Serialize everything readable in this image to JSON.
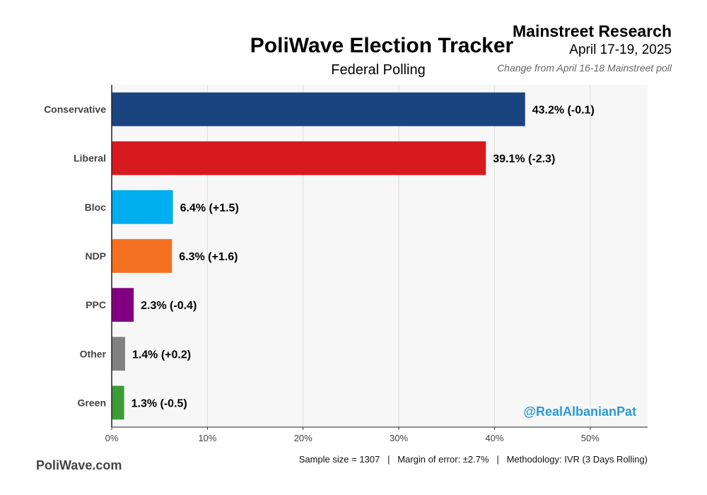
{
  "header": {
    "title": "PoliWave Election Tracker",
    "subtitle": "Federal Polling",
    "pollster": "Mainstreet Research",
    "dates": "April 17-19, 2025",
    "change_note": "Change from April 16-18 Mainstreet poll"
  },
  "footer": {
    "site": "PoliWave.com",
    "note": "Sample size = 1307   |   Margin of error: ±2.7%   |   Methodology: IVR (3 Days Rolling)"
  },
  "watermark": "@RealAlbanianPat",
  "colors": {
    "panel_background": "#f7f7f7",
    "grid": "#dddddd",
    "watermark": "#2b9ad6"
  },
  "chart_data": {
    "type": "bar",
    "orientation": "horizontal",
    "categories": [
      "Conservative",
      "Liberal",
      "Bloc",
      "NDP",
      "PPC",
      "Other",
      "Green"
    ],
    "values": [
      43.2,
      39.1,
      6.4,
      6.3,
      2.3,
      1.4,
      1.3
    ],
    "changes": [
      "-0.1",
      "-2.3",
      "+1.5",
      "+1.6",
      "-0.4",
      "+0.2",
      "-0.5"
    ],
    "data_labels": [
      "43.2% (-0.1)",
      "39.1% (-2.3)",
      "6.4% (+1.5)",
      "6.3% (+1.6)",
      "2.3% (-0.4)",
      "1.4% (+0.2)",
      "1.3% (-0.5)"
    ],
    "colors": [
      "#1a4480",
      "#d71920",
      "#00aeef",
      "#f37021",
      "#800080",
      "#808080",
      "#3d9b35"
    ],
    "x_ticks": [
      0,
      10,
      20,
      30,
      40,
      50
    ],
    "x_tick_labels": [
      "0%",
      "10%",
      "20%",
      "30%",
      "40%",
      "50%"
    ],
    "xlim": [
      0,
      56
    ],
    "xlabel": "",
    "ylabel": "",
    "grid": true
  }
}
